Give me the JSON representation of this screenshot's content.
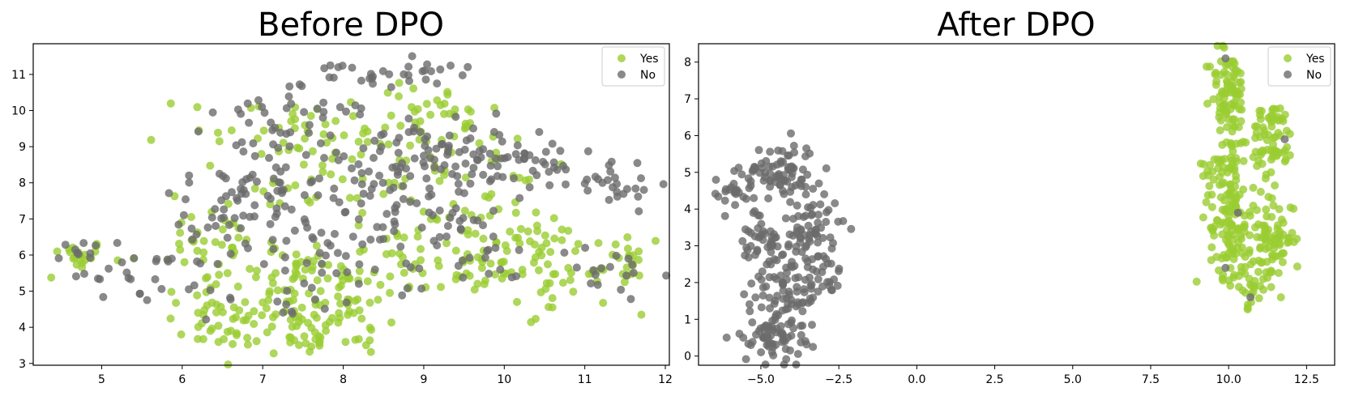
{
  "chart_data": [
    {
      "type": "scatter",
      "title": "Before DPO",
      "xlabel": "",
      "ylabel": "",
      "xlim": [
        4.15,
        12.05
      ],
      "ylim": [
        2.95,
        11.85
      ],
      "xticks": [
        5,
        6,
        7,
        8,
        9,
        10,
        11,
        12
      ],
      "yticks": [
        3,
        4,
        5,
        6,
        7,
        8,
        9,
        10,
        11
      ],
      "grid": false,
      "legend_position": "top-right",
      "series": [
        {
          "name": "Yes",
          "color": "#9acd32",
          "clusters": [
            {
              "cx": 4.7,
              "cy": 6.0,
              "sx": 0.18,
              "sy": 0.2,
              "n": 20
            },
            {
              "cx": 6.5,
              "cy": 4.1,
              "sx": 0.35,
              "sy": 0.35,
              "n": 20
            },
            {
              "cx": 7.2,
              "cy": 5.0,
              "sx": 0.7,
              "sy": 0.8,
              "n": 90
            },
            {
              "cx": 7.9,
              "cy": 4.2,
              "sx": 0.5,
              "sy": 0.4,
              "n": 35
            },
            {
              "cx": 7.5,
              "cy": 3.6,
              "sx": 0.6,
              "sy": 0.2,
              "n": 20
            },
            {
              "cx": 8.6,
              "cy": 5.6,
              "sx": 0.8,
              "sy": 0.6,
              "n": 55
            },
            {
              "cx": 7.6,
              "cy": 9.6,
              "sx": 0.8,
              "sy": 0.5,
              "n": 35
            },
            {
              "cx": 8.7,
              "cy": 9.2,
              "sx": 0.7,
              "sy": 0.7,
              "n": 40
            },
            {
              "cx": 7.8,
              "cy": 8.0,
              "sx": 0.9,
              "sy": 0.8,
              "n": 45
            },
            {
              "cx": 10.0,
              "cy": 6.0,
              "sx": 0.6,
              "sy": 0.5,
              "n": 50
            },
            {
              "cx": 10.8,
              "cy": 5.4,
              "sx": 0.5,
              "sy": 0.5,
              "n": 40
            },
            {
              "cx": 10.1,
              "cy": 7.8,
              "sx": 0.6,
              "sy": 0.7,
              "n": 25
            },
            {
              "cx": 6.4,
              "cy": 6.2,
              "sx": 0.4,
              "sy": 0.5,
              "n": 25
            },
            {
              "cx": 9.3,
              "cy": 10.0,
              "sx": 0.3,
              "sy": 0.4,
              "n": 15
            },
            {
              "cx": 11.5,
              "cy": 5.8,
              "sx": 0.2,
              "sy": 0.3,
              "n": 12
            }
          ]
        },
        {
          "name": "No",
          "color": "#6b6b6b",
          "clusters": [
            {
              "cx": 5.4,
              "cy": 5.5,
              "sx": 0.4,
              "sy": 0.4,
              "n": 25
            },
            {
              "cx": 8.5,
              "cy": 11.1,
              "sx": 0.5,
              "sy": 0.2,
              "n": 25
            },
            {
              "cx": 7.8,
              "cy": 10.0,
              "sx": 0.7,
              "sy": 0.6,
              "n": 45
            },
            {
              "cx": 8.8,
              "cy": 8.3,
              "sx": 0.8,
              "sy": 0.7,
              "n": 110
            },
            {
              "cx": 7.0,
              "cy": 8.0,
              "sx": 0.5,
              "sy": 0.6,
              "n": 35
            },
            {
              "cx": 6.5,
              "cy": 7.0,
              "sx": 0.4,
              "sy": 0.5,
              "n": 30
            },
            {
              "cx": 10.0,
              "cy": 8.6,
              "sx": 0.6,
              "sy": 0.4,
              "n": 45
            },
            {
              "cx": 11.3,
              "cy": 8.0,
              "sx": 0.4,
              "sy": 0.3,
              "n": 25
            },
            {
              "cx": 7.9,
              "cy": 6.5,
              "sx": 0.7,
              "sy": 0.7,
              "n": 45
            },
            {
              "cx": 9.4,
              "cy": 6.4,
              "sx": 0.6,
              "sy": 0.6,
              "n": 30
            },
            {
              "cx": 7.4,
              "cy": 5.0,
              "sx": 0.6,
              "sy": 0.5,
              "n": 20
            },
            {
              "cx": 11.2,
              "cy": 5.5,
              "sx": 0.4,
              "sy": 0.4,
              "n": 20
            },
            {
              "cx": 4.8,
              "cy": 6.0,
              "sx": 0.2,
              "sy": 0.2,
              "n": 8
            }
          ]
        }
      ]
    },
    {
      "type": "scatter",
      "title": "After DPO",
      "xlabel": "",
      "ylabel": "",
      "xlim": [
        -7.0,
        13.4
      ],
      "ylim": [
        -0.25,
        8.5
      ],
      "xticks": [
        -5.0,
        -2.5,
        0.0,
        2.5,
        5.0,
        7.5,
        10.0,
        12.5
      ],
      "xtick_labels": [
        "−5.0",
        "−2.5",
        "0.0",
        "2.5",
        "5.0",
        "7.5",
        "10.0",
        "12.5"
      ],
      "yticks": [
        0,
        1,
        2,
        3,
        4,
        5,
        6,
        7,
        8
      ],
      "grid": false,
      "legend_position": "top-right",
      "series": [
        {
          "name": "Yes",
          "color": "#9acd32",
          "clusters": [
            {
              "cx": 10.0,
              "cy": 7.2,
              "sx": 0.3,
              "sy": 0.6,
              "n": 80
            },
            {
              "cx": 11.4,
              "cy": 5.9,
              "sx": 0.35,
              "sy": 0.5,
              "n": 70
            },
            {
              "cx": 9.9,
              "cy": 5.2,
              "sx": 0.35,
              "sy": 0.6,
              "n": 60
            },
            {
              "cx": 10.1,
              "cy": 3.5,
              "sx": 0.35,
              "sy": 0.7,
              "n": 90
            },
            {
              "cx": 11.4,
              "cy": 3.2,
              "sx": 0.35,
              "sy": 0.6,
              "n": 80
            },
            {
              "cx": 10.6,
              "cy": 2.0,
              "sx": 0.35,
              "sy": 0.35,
              "n": 30
            }
          ]
        },
        {
          "name": "No",
          "color": "#6b6b6b",
          "clusters": [
            {
              "cx": -6.0,
              "cy": 4.4,
              "sx": 0.35,
              "sy": 0.25,
              "n": 20
            },
            {
              "cx": -4.4,
              "cy": 5.0,
              "sx": 0.6,
              "sy": 0.4,
              "n": 80
            },
            {
              "cx": -3.4,
              "cy": 3.5,
              "sx": 0.45,
              "sy": 0.5,
              "n": 60
            },
            {
              "cx": -4.9,
              "cy": 3.0,
              "sx": 0.4,
              "sy": 0.6,
              "n": 50
            },
            {
              "cx": -4.0,
              "cy": 1.8,
              "sx": 0.5,
              "sy": 0.5,
              "n": 70
            },
            {
              "cx": -4.6,
              "cy": 0.6,
              "sx": 0.5,
              "sy": 0.4,
              "n": 70
            },
            {
              "cx": -2.8,
              "cy": 2.2,
              "sx": 0.2,
              "sy": 0.3,
              "n": 15
            }
          ],
          "extra_points": [
            [
              9.9,
              2.4
            ],
            [
              10.7,
              1.6
            ],
            [
              11.8,
              5.9
            ],
            [
              9.9,
              8.1
            ],
            [
              10.3,
              3.9
            ]
          ]
        }
      ]
    }
  ]
}
